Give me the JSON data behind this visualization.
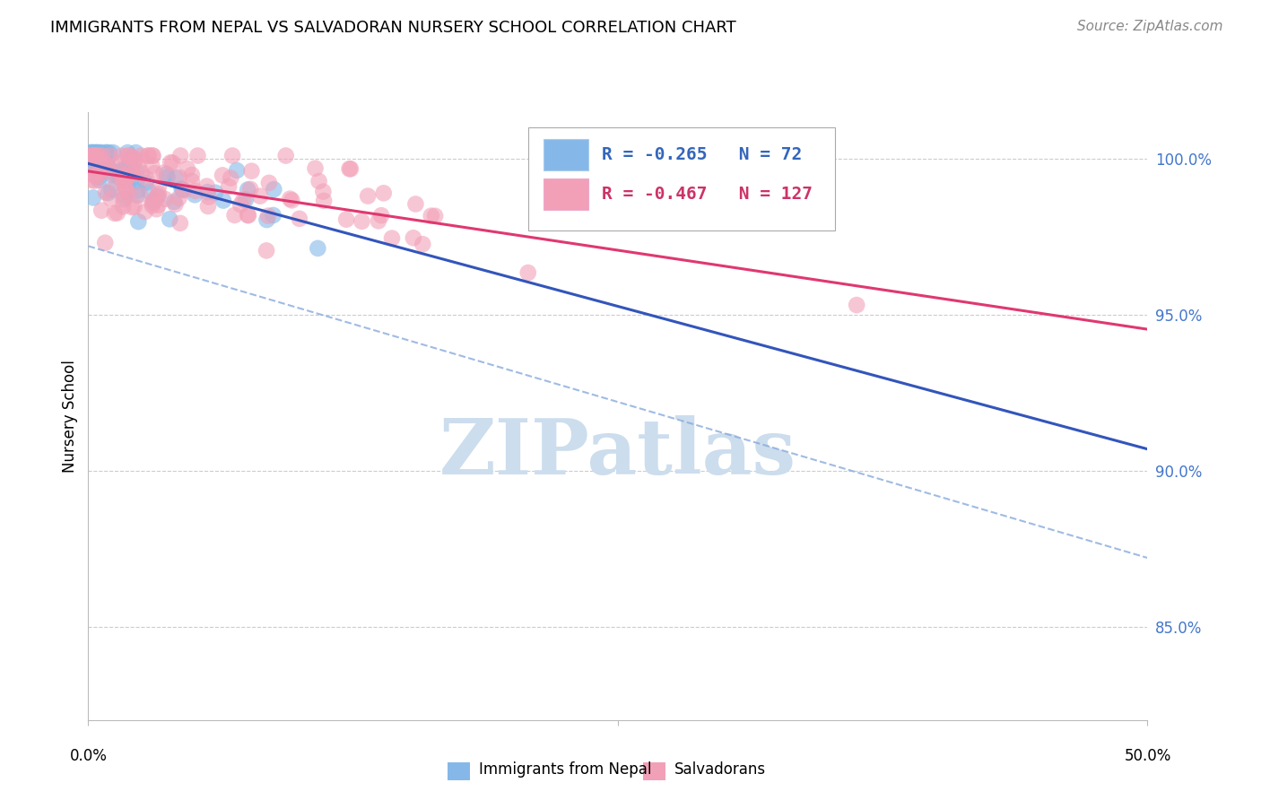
{
  "title": "IMMIGRANTS FROM NEPAL VS SALVADORAN NURSERY SCHOOL CORRELATION CHART",
  "source": "Source: ZipAtlas.com",
  "ylabel": "Nursery School",
  "legend_label_blue": "Immigrants from Nepal",
  "legend_label_pink": "Salvadorans",
  "legend_blue_r": "-0.265",
  "legend_blue_n": "72",
  "legend_pink_r": "-0.467",
  "legend_pink_n": "127",
  "ytick_labels": [
    "85.0%",
    "90.0%",
    "95.0%",
    "100.0%"
  ],
  "ytick_values": [
    0.85,
    0.9,
    0.95,
    1.0
  ],
  "xlim": [
    0.0,
    0.5
  ],
  "ylim": [
    0.82,
    1.015
  ],
  "blue_color": "#85b8e8",
  "pink_color": "#f2a0b8",
  "blue_line_color": "#3355bb",
  "pink_line_color": "#e03870",
  "blue_dash_color": "#88aadd",
  "grid_color": "#cccccc",
  "watermark_color": "#ccdded",
  "background_color": "#ffffff",
  "title_fontsize": 13,
  "source_fontsize": 11,
  "tick_fontsize": 12,
  "ylabel_fontsize": 12,
  "legend_fontsize": 14
}
